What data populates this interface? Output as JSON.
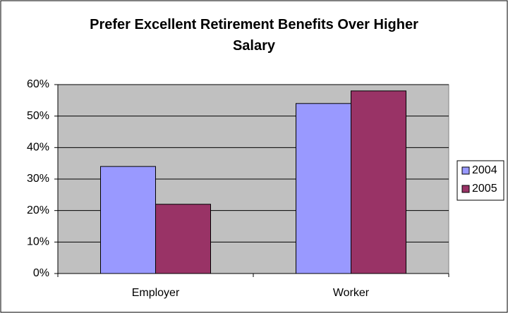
{
  "chart_data": {
    "type": "bar",
    "title": "Prefer Excellent Retirement Benefits Over Higher Salary",
    "categories": [
      "Employer",
      "Worker"
    ],
    "series": [
      {
        "name": "2004",
        "color": "#9999ff",
        "values": [
          34,
          54
        ]
      },
      {
        "name": "2005",
        "color": "#993366",
        "values": [
          22,
          58
        ]
      }
    ],
    "ylim": [
      0,
      60
    ],
    "yticks": [
      {
        "value": 0,
        "label": "0%"
      },
      {
        "value": 10,
        "label": "10%"
      },
      {
        "value": 20,
        "label": "20%"
      },
      {
        "value": 30,
        "label": "30%"
      },
      {
        "value": 40,
        "label": "40%"
      },
      {
        "value": 50,
        "label": "50%"
      },
      {
        "value": 60,
        "label": "60%"
      }
    ],
    "grid": true,
    "legend": "right"
  }
}
